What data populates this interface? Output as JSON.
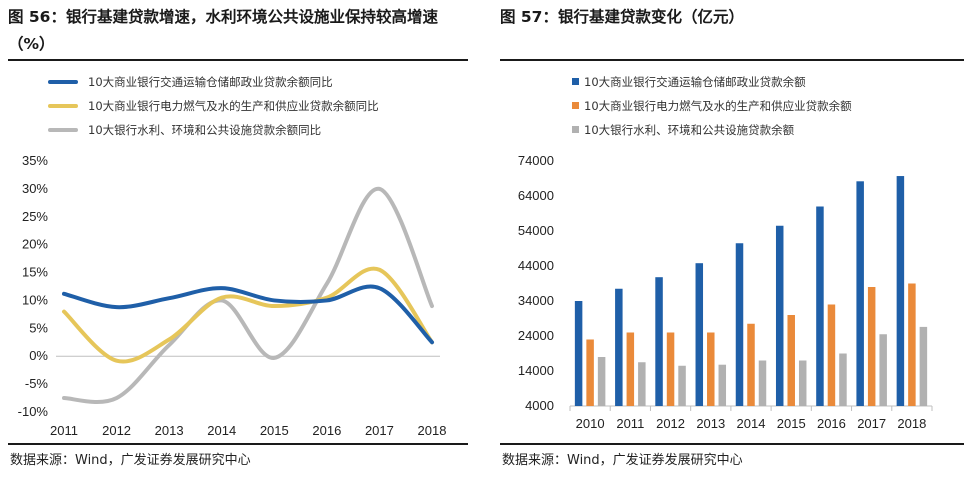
{
  "left": {
    "title": "图 56：银行基建贷款增速，水利环境公共设施业保持较高增速（%）",
    "source": "数据来源：Wind，广发证券发展研究中心"
  },
  "right": {
    "title": "图 57：银行基建贷款变化（亿元）",
    "source": "数据来源：Wind，广发证券发展研究中心"
  },
  "chart_data": [
    {
      "type": "line",
      "title": "银行基建贷款增速，水利环境公共设施业保持较高增速（%）",
      "categories": [
        "2011",
        "2012",
        "2013",
        "2014",
        "2015",
        "2016",
        "2017",
        "2018"
      ],
      "ylim": [
        -10,
        35
      ],
      "yticks": [
        "-10%",
        "-5%",
        "0%",
        "5%",
        "10%",
        "15%",
        "20%",
        "25%",
        "30%",
        "35%"
      ],
      "ytick_values": [
        -10,
        -5,
        0,
        5,
        10,
        15,
        20,
        25,
        30,
        35
      ],
      "legend_position": "top",
      "grid": false,
      "series": [
        {
          "name": "10大商业银行交通运输仓储邮政业贷款余额同比",
          "color": "#1F5FA8",
          "values": [
            11.2,
            8.8,
            10.4,
            12.2,
            10.0,
            10.0,
            12.2,
            2.5
          ]
        },
        {
          "name": "10大商业银行电力燃气及水的生产和供应业贷款余额同比",
          "color": "#E6C65A",
          "values": [
            8.0,
            -0.8,
            3.0,
            10.5,
            9.0,
            10.5,
            15.5,
            2.5
          ]
        },
        {
          "name": "10大银行水利、环境和公共设施贷款余额同比",
          "color": "#B8B8B8",
          "values": [
            -7.5,
            -7.5,
            2.0,
            10.0,
            -0.3,
            13.0,
            30.0,
            9.0
          ]
        }
      ]
    },
    {
      "type": "bar",
      "title": "银行基建贷款变化（亿元）",
      "categories": [
        "2010",
        "2011",
        "2012",
        "2013",
        "2014",
        "2015",
        "2016",
        "2017",
        "2018"
      ],
      "ylim": [
        4000,
        74000
      ],
      "yticks": [
        "4000",
        "14000",
        "24000",
        "34000",
        "44000",
        "54000",
        "64000",
        "74000"
      ],
      "ytick_values": [
        4000,
        14000,
        24000,
        34000,
        44000,
        54000,
        64000,
        74000
      ],
      "legend_position": "top",
      "grid": false,
      "series": [
        {
          "name": "10大商业银行交通运输仓储邮政业贷款余额",
          "color": "#1F5FA8",
          "values": [
            34000,
            37500,
            40800,
            44800,
            50500,
            55500,
            61000,
            68200,
            69700
          ]
        },
        {
          "name": "10大商业银行电力燃气及水的生产和供应业贷款余额",
          "color": "#EA8A3A",
          "values": [
            23000,
            25000,
            25000,
            25000,
            27500,
            30000,
            33000,
            38000,
            39000
          ]
        },
        {
          "name": "10大银行水利、环境和公共设施贷款余额",
          "color": "#B1B1B1",
          "values": [
            18000,
            16500,
            15500,
            15800,
            17000,
            17000,
            19000,
            24500,
            26600
          ]
        }
      ]
    }
  ]
}
